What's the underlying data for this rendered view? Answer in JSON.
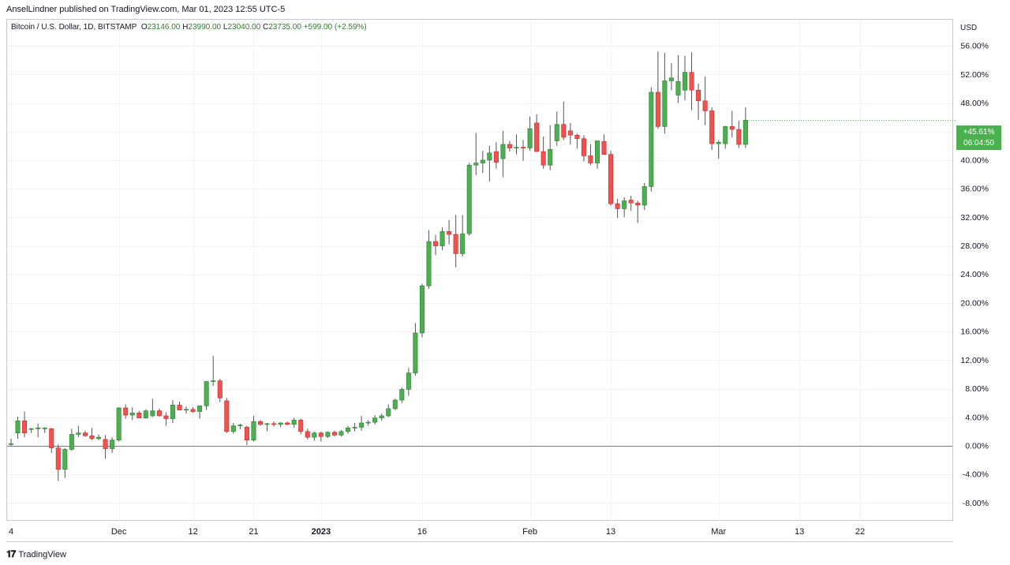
{
  "header": {
    "published": "AnselLindner published on TradingView.com, Mar 01, 2023 12:55 UTC-5",
    "symbol": "Bitcoin / U.S. Dollar, 1D, BITSTAMP",
    "open_label": "O",
    "open": "23146.00",
    "high_label": "H",
    "high": "23990.00",
    "low_label": "L",
    "low": "23040.00",
    "close_label": "C",
    "close": "23735.00",
    "change": "+599.00 (+2.59%)"
  },
  "currency": "USD",
  "footer": {
    "brand": "TradingView",
    "logo": "tradingview-logo-icon"
  },
  "colors": {
    "up": "#4caf50",
    "down": "#ef5350",
    "baseline": "#787b86",
    "grid": "#f0f3fa"
  },
  "badge": {
    "value": "+45.61%",
    "timer": "06:04:50"
  },
  "chart_data": {
    "type": "candlestick",
    "scale": "percent",
    "ylim": [
      -10.5,
      58
    ],
    "y_ticks": [
      -8,
      -4,
      0,
      4,
      8,
      12,
      16,
      20,
      24,
      28,
      32,
      36,
      40,
      44,
      48,
      52,
      56
    ],
    "y_tick_labels": [
      "-8.00%",
      "-4.00%",
      "0.00%",
      "4.00%",
      "8.00%",
      "12.00%",
      "16.00%",
      "20.00%",
      "24.00%",
      "28.00%",
      "32.00%",
      "36.00%",
      "40.00%",
      "44.00%",
      "48.00%",
      "52.00%",
      "56.00%"
    ],
    "x_ticks": [
      {
        "day": 0,
        "label": "4"
      },
      {
        "day": 16,
        "label": "Dec"
      },
      {
        "day": 27,
        "label": "12"
      },
      {
        "day": 36,
        "label": "21"
      },
      {
        "day": 46,
        "label": "2023"
      },
      {
        "day": 61,
        "label": "16"
      },
      {
        "day": 77,
        "label": "Feb"
      },
      {
        "day": 89,
        "label": "13"
      },
      {
        "day": 105,
        "label": "Mar"
      },
      {
        "day": 117,
        "label": "13"
      },
      {
        "day": 126,
        "label": "22"
      }
    ],
    "x_range": [
      0,
      131
    ],
    "series": [
      {
        "o": 0.3,
        "h": 1.0,
        "l": 0.0,
        "c": 0.3
      },
      {
        "o": 1.8,
        "h": 4.1,
        "l": 1.0,
        "c": 3.5
      },
      {
        "o": 3.5,
        "h": 4.8,
        "l": 1.2,
        "c": 1.8
      },
      {
        "o": 2.3,
        "h": 2.5,
        "l": 1.8,
        "c": 2.4
      },
      {
        "o": 2.5,
        "h": 3.1,
        "l": 1.2,
        "c": 2.5
      },
      {
        "o": 2.5,
        "h": 2.6,
        "l": 1.8,
        "c": 2.5
      },
      {
        "o": 2.4,
        "h": 2.5,
        "l": -1.0,
        "c": -0.3
      },
      {
        "o": -0.3,
        "h": 0.2,
        "l": -4.9,
        "c": -3.3
      },
      {
        "o": -3.3,
        "h": -0.3,
        "l": -4.5,
        "c": -0.5
      },
      {
        "o": -0.5,
        "h": 2.4,
        "l": -0.7,
        "c": 1.6
      },
      {
        "o": 1.6,
        "h": 2.8,
        "l": 1.2,
        "c": 1.8
      },
      {
        "o": 1.8,
        "h": 2.1,
        "l": 1.3,
        "c": 1.4
      },
      {
        "o": 1.4,
        "h": 2.5,
        "l": 0.8,
        "c": 1.0
      },
      {
        "o": 1.0,
        "h": 1.6,
        "l": 0.8,
        "c": 1.2
      },
      {
        "o": 0.9,
        "h": 1.5,
        "l": -1.8,
        "c": -0.4
      },
      {
        "o": -0.4,
        "h": 1.2,
        "l": -1.0,
        "c": 0.8
      },
      {
        "o": 0.8,
        "h": 5.4,
        "l": 0.6,
        "c": 5.3
      },
      {
        "o": 5.3,
        "h": 5.8,
        "l": 3.8,
        "c": 4.3
      },
      {
        "o": 4.3,
        "h": 5.4,
        "l": 3.6,
        "c": 4.6
      },
      {
        "o": 4.6,
        "h": 4.9,
        "l": 3.9,
        "c": 3.9
      },
      {
        "o": 3.9,
        "h": 5.1,
        "l": 3.8,
        "c": 4.9
      },
      {
        "o": 4.2,
        "h": 6.6,
        "l": 4.0,
        "c": 4.9
      },
      {
        "o": 4.9,
        "h": 5.2,
        "l": 4.1,
        "c": 4.2
      },
      {
        "o": 4.2,
        "h": 4.7,
        "l": 2.8,
        "c": 3.8
      },
      {
        "o": 3.8,
        "h": 6.4,
        "l": 3.2,
        "c": 5.7
      },
      {
        "o": 5.7,
        "h": 6.2,
        "l": 5.0,
        "c": 5.0
      },
      {
        "o": 5.0,
        "h": 5.5,
        "l": 4.5,
        "c": 5.1
      },
      {
        "o": 5.1,
        "h": 5.4,
        "l": 4.6,
        "c": 4.8
      },
      {
        "o": 4.8,
        "h": 5.6,
        "l": 3.8,
        "c": 5.6
      },
      {
        "o": 5.6,
        "h": 9.1,
        "l": 5.0,
        "c": 9.0
      },
      {
        "o": 9.0,
        "h": 12.6,
        "l": 8.4,
        "c": 9.1
      },
      {
        "o": 9.1,
        "h": 9.4,
        "l": 6.1,
        "c": 6.7
      },
      {
        "o": 6.3,
        "h": 6.7,
        "l": 1.8,
        "c": 2.0
      },
      {
        "o": 2.0,
        "h": 3.2,
        "l": 1.7,
        "c": 2.8
      },
      {
        "o": 2.8,
        "h": 3.1,
        "l": 2.3,
        "c": 2.9
      },
      {
        "o": 2.6,
        "h": 2.8,
        "l": 0.1,
        "c": 0.8
      },
      {
        "o": 0.8,
        "h": 4.2,
        "l": 0.6,
        "c": 3.4
      },
      {
        "o": 3.4,
        "h": 3.6,
        "l": 2.8,
        "c": 3.0
      },
      {
        "o": 3.0,
        "h": 3.2,
        "l": 2.0,
        "c": 3.1
      },
      {
        "o": 3.1,
        "h": 3.4,
        "l": 2.7,
        "c": 3.0
      },
      {
        "o": 3.0,
        "h": 3.3,
        "l": 2.6,
        "c": 3.2
      },
      {
        "o": 3.2,
        "h": 3.4,
        "l": 2.9,
        "c": 3.0
      },
      {
        "o": 3.0,
        "h": 3.9,
        "l": 2.5,
        "c": 3.6
      },
      {
        "o": 3.6,
        "h": 3.8,
        "l": 1.6,
        "c": 2.0
      },
      {
        "o": 2.0,
        "h": 2.4,
        "l": 0.9,
        "c": 1.2
      },
      {
        "o": 1.2,
        "h": 2.0,
        "l": 0.7,
        "c": 1.8
      },
      {
        "o": 1.8,
        "h": 2.0,
        "l": 0.6,
        "c": 1.3
      },
      {
        "o": 1.3,
        "h": 2.0,
        "l": 1.1,
        "c": 1.9
      },
      {
        "o": 1.9,
        "h": 2.1,
        "l": 1.3,
        "c": 1.5
      },
      {
        "o": 1.5,
        "h": 2.2,
        "l": 1.3,
        "c": 2.0
      },
      {
        "o": 2.0,
        "h": 2.8,
        "l": 1.7,
        "c": 2.5
      },
      {
        "o": 2.5,
        "h": 3.2,
        "l": 2.0,
        "c": 2.6
      },
      {
        "o": 2.6,
        "h": 4.2,
        "l": 2.1,
        "c": 3.2
      },
      {
        "o": 3.2,
        "h": 3.6,
        "l": 2.8,
        "c": 3.3
      },
      {
        "o": 3.3,
        "h": 4.3,
        "l": 3.0,
        "c": 3.9
      },
      {
        "o": 3.9,
        "h": 4.5,
        "l": 3.5,
        "c": 4.2
      },
      {
        "o": 4.2,
        "h": 5.8,
        "l": 4.0,
        "c": 5.2
      },
      {
        "o": 5.2,
        "h": 6.6,
        "l": 5.0,
        "c": 6.4
      },
      {
        "o": 6.4,
        "h": 8.2,
        "l": 6.0,
        "c": 7.9
      },
      {
        "o": 7.9,
        "h": 10.9,
        "l": 7.0,
        "c": 10.2
      },
      {
        "o": 10.2,
        "h": 17.2,
        "l": 9.8,
        "c": 15.8
      },
      {
        "o": 15.8,
        "h": 22.7,
        "l": 15.2,
        "c": 22.4
      },
      {
        "o": 22.4,
        "h": 30.2,
        "l": 22.0,
        "c": 28.6
      },
      {
        "o": 28.6,
        "h": 29.5,
        "l": 26.7,
        "c": 28.0
      },
      {
        "o": 28.0,
        "h": 30.6,
        "l": 27.4,
        "c": 30.0
      },
      {
        "o": 30.0,
        "h": 31.6,
        "l": 28.2,
        "c": 29.6
      },
      {
        "o": 29.6,
        "h": 32.3,
        "l": 25.0,
        "c": 26.9
      },
      {
        "o": 26.9,
        "h": 32.3,
        "l": 26.5,
        "c": 29.7
      },
      {
        "o": 29.7,
        "h": 39.6,
        "l": 29.4,
        "c": 39.3
      },
      {
        "o": 39.3,
        "h": 43.8,
        "l": 37.9,
        "c": 39.6
      },
      {
        "o": 39.6,
        "h": 41.3,
        "l": 38.2,
        "c": 40.0
      },
      {
        "o": 40.0,
        "h": 42.0,
        "l": 37.0,
        "c": 41.0
      },
      {
        "o": 41.2,
        "h": 42.5,
        "l": 38.8,
        "c": 39.7
      },
      {
        "o": 40.2,
        "h": 44.1,
        "l": 37.6,
        "c": 42.2
      },
      {
        "o": 42.2,
        "h": 42.7,
        "l": 41.2,
        "c": 41.7
      },
      {
        "o": 41.7,
        "h": 43.6,
        "l": 40.8,
        "c": 41.8
      },
      {
        "o": 41.8,
        "h": 42.8,
        "l": 39.9,
        "c": 41.7
      },
      {
        "o": 41.7,
        "h": 46.1,
        "l": 41.3,
        "c": 44.4
      },
      {
        "o": 45.2,
        "h": 46.4,
        "l": 41.2,
        "c": 41.2
      },
      {
        "o": 41.2,
        "h": 43.3,
        "l": 38.8,
        "c": 39.3
      },
      {
        "o": 39.3,
        "h": 44.9,
        "l": 38.6,
        "c": 41.5
      },
      {
        "o": 42.7,
        "h": 46.8,
        "l": 42.0,
        "c": 45.0
      },
      {
        "o": 45.0,
        "h": 48.2,
        "l": 42.8,
        "c": 43.2
      },
      {
        "o": 44.1,
        "h": 45.2,
        "l": 42.2,
        "c": 43.5
      },
      {
        "o": 43.5,
        "h": 43.7,
        "l": 41.6,
        "c": 43.0
      },
      {
        "o": 43.0,
        "h": 43.5,
        "l": 39.8,
        "c": 40.6
      },
      {
        "o": 40.6,
        "h": 42.2,
        "l": 39.3,
        "c": 39.6
      },
      {
        "o": 39.6,
        "h": 42.6,
        "l": 38.8,
        "c": 42.7
      },
      {
        "o": 42.6,
        "h": 43.6,
        "l": 40.8,
        "c": 40.8
      },
      {
        "o": 40.8,
        "h": 41.3,
        "l": 33.6,
        "c": 33.9
      },
      {
        "o": 33.9,
        "h": 34.6,
        "l": 31.9,
        "c": 33.2
      },
      {
        "o": 33.2,
        "h": 34.8,
        "l": 32.0,
        "c": 34.3
      },
      {
        "o": 34.4,
        "h": 35.0,
        "l": 32.9,
        "c": 34.0
      },
      {
        "o": 34.0,
        "h": 34.3,
        "l": 31.2,
        "c": 33.7
      },
      {
        "o": 33.7,
        "h": 36.8,
        "l": 33.0,
        "c": 36.3
      },
      {
        "o": 36.3,
        "h": 50.2,
        "l": 35.6,
        "c": 49.5
      },
      {
        "o": 49.5,
        "h": 55.2,
        "l": 44.4,
        "c": 44.7
      },
      {
        "o": 44.7,
        "h": 55.0,
        "l": 43.7,
        "c": 51.1
      },
      {
        "o": 51.1,
        "h": 53.6,
        "l": 49.8,
        "c": 51.5
      },
      {
        "o": 49.1,
        "h": 54.7,
        "l": 48.0,
        "c": 51.0
      },
      {
        "o": 49.8,
        "h": 54.6,
        "l": 48.4,
        "c": 52.3
      },
      {
        "o": 52.3,
        "h": 55.1,
        "l": 47.0,
        "c": 49.8
      },
      {
        "o": 49.8,
        "h": 50.7,
        "l": 45.6,
        "c": 48.3
      },
      {
        "o": 48.3,
        "h": 51.7,
        "l": 44.9,
        "c": 46.9
      },
      {
        "o": 46.9,
        "h": 47.4,
        "l": 41.4,
        "c": 42.3
      },
      {
        "o": 42.3,
        "h": 42.8,
        "l": 40.2,
        "c": 42.5
      },
      {
        "o": 42.3,
        "h": 44.8,
        "l": 41.6,
        "c": 44.7
      },
      {
        "o": 44.7,
        "h": 46.9,
        "l": 43.2,
        "c": 44.3
      },
      {
        "o": 44.3,
        "h": 45.5,
        "l": 41.7,
        "c": 42.2
      },
      {
        "o": 42.2,
        "h": 47.4,
        "l": 41.7,
        "c": 45.6
      }
    ]
  }
}
